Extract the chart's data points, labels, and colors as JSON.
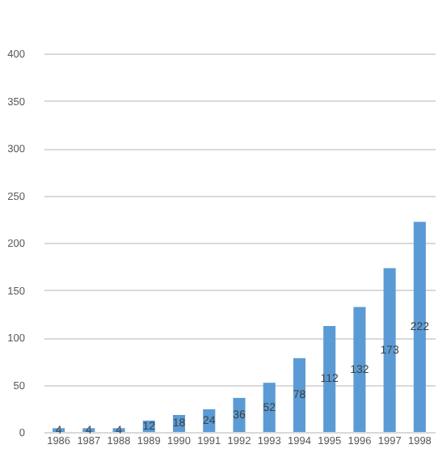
{
  "chart_data": {
    "type": "bar",
    "categories": [
      "1986",
      "1987",
      "1988",
      "1989",
      "1990",
      "1991",
      "1992",
      "1993",
      "1994",
      "1995",
      "1996",
      "1997",
      "1998"
    ],
    "values": [
      4,
      4,
      4,
      12,
      18,
      24,
      36,
      52,
      78,
      112,
      132,
      173,
      222
    ],
    "color": "#5b9bd5",
    "ylim": [
      0,
      400
    ],
    "yticks": [
      0,
      50,
      100,
      150,
      200,
      250,
      300,
      350,
      400
    ],
    "grid": "y",
    "data_labels": true
  }
}
